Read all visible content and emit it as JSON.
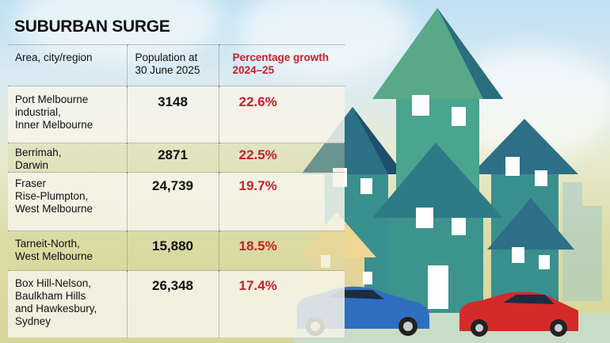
{
  "title": "SUBURBAN SURGE",
  "headers": [
    "Area, city/region",
    "Population at 30 June 2025",
    "Percentage growth 2024–25"
  ],
  "header_lines": {
    "pop": [
      "Population at",
      "30 June 2025"
    ],
    "pct": [
      "Percentage growth",
      "2024–25"
    ]
  },
  "rows": [
    {
      "area_lines": [
        "Port Melbourne",
        "industrial,",
        "Inner Melbourne"
      ],
      "population": "3148",
      "growth": "22.6%"
    },
    {
      "area_lines": [
        "Berrimah,",
        "Darwin"
      ],
      "population": "2871",
      "growth": "22.5%"
    },
    {
      "area_lines": [
        "Fraser",
        "Rise-Plumpton,",
        "West Melbourne"
      ],
      "population": "24,739",
      "growth": "19.7%"
    },
    {
      "area_lines": [
        "Tarneit-North,",
        "West Melbourne"
      ],
      "population": "15,880",
      "growth": "18.5%"
    },
    {
      "area_lines": [
        "Box Hill-Nelson,",
        "Baulkham Hills",
        "and Hawkesbury,",
        "Sydney"
      ],
      "population": "26,348",
      "growth": "17.4%"
    }
  ],
  "colors": {
    "growth": "#c8202b",
    "text": "#111111",
    "house_teal": "#3a8f8f",
    "car_blue": "#2f6fc0",
    "car_red": "#d42a2a"
  },
  "chart_data": {
    "type": "table",
    "title": "SUBURBAN SURGE",
    "columns": [
      "Area, city/region",
      "Population at 30 June 2025",
      "Percentage growth 2024–25"
    ],
    "rows": [
      [
        "Port Melbourne industrial, Inner Melbourne",
        3148,
        22.6
      ],
      [
        "Berrimah, Darwin",
        2871,
        22.5
      ],
      [
        "Fraser Rise-Plumpton, West Melbourne",
        24739,
        19.7
      ],
      [
        "Tarneit-North, West Melbourne",
        15880,
        18.5
      ],
      [
        "Box Hill-Nelson, Baulkham Hills and Hawkesbury, Sydney",
        26348,
        17.4
      ]
    ]
  }
}
